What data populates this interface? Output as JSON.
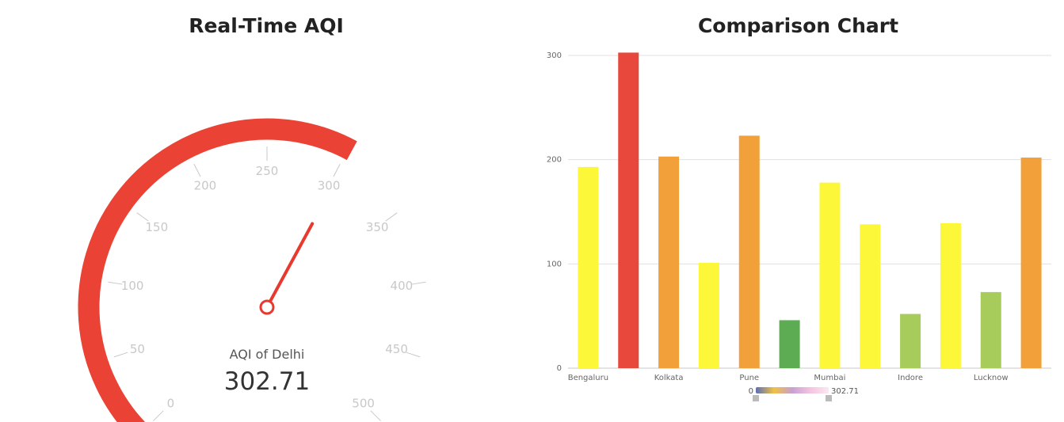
{
  "gauge": {
    "title": "Real-Time AQI",
    "caption": "AQI of Delhi",
    "value_text": "302.71",
    "ticks": [
      "0",
      "50",
      "100",
      "150",
      "200",
      "250",
      "300",
      "350",
      "400",
      "450",
      "500"
    ],
    "colors": {
      "progress": "#ea4335",
      "pointer": "#e8392f",
      "tick": "#c8c8c8"
    }
  },
  "chart_data": [
    {
      "type": "gauge",
      "title": "Real-Time AQI",
      "label": "AQI of Delhi",
      "value": 302.71,
      "min": 0,
      "max": 500
    },
    {
      "type": "bar",
      "title": "Comparison Chart",
      "categories": [
        "Bengaluru",
        "",
        "Kolkata",
        "",
        "Pune",
        "",
        "Mumbai",
        "",
        "Indore",
        "",
        "Lucknow",
        ""
      ],
      "values": [
        193,
        302.71,
        203,
        101,
        223,
        46,
        178,
        138,
        52,
        139,
        73,
        202
      ],
      "colors": [
        "#fdf73a",
        "#e8473b",
        "#f2a03a",
        "#fdf73a",
        "#f2a03a",
        "#5dab53",
        "#fdf73a",
        "#fdf73a",
        "#a8cc5c",
        "#fdf73a",
        "#a8cc5c",
        "#f2a03a"
      ],
      "yticks": [
        "0",
        "100",
        "200",
        "300"
      ],
      "ylim": [
        0,
        300
      ],
      "grid": true,
      "visual_map": {
        "min_label": "0",
        "max_label": "302.71",
        "min": 0,
        "max": 302.71
      }
    }
  ],
  "bar_chart": {
    "title": "Comparison Chart"
  }
}
